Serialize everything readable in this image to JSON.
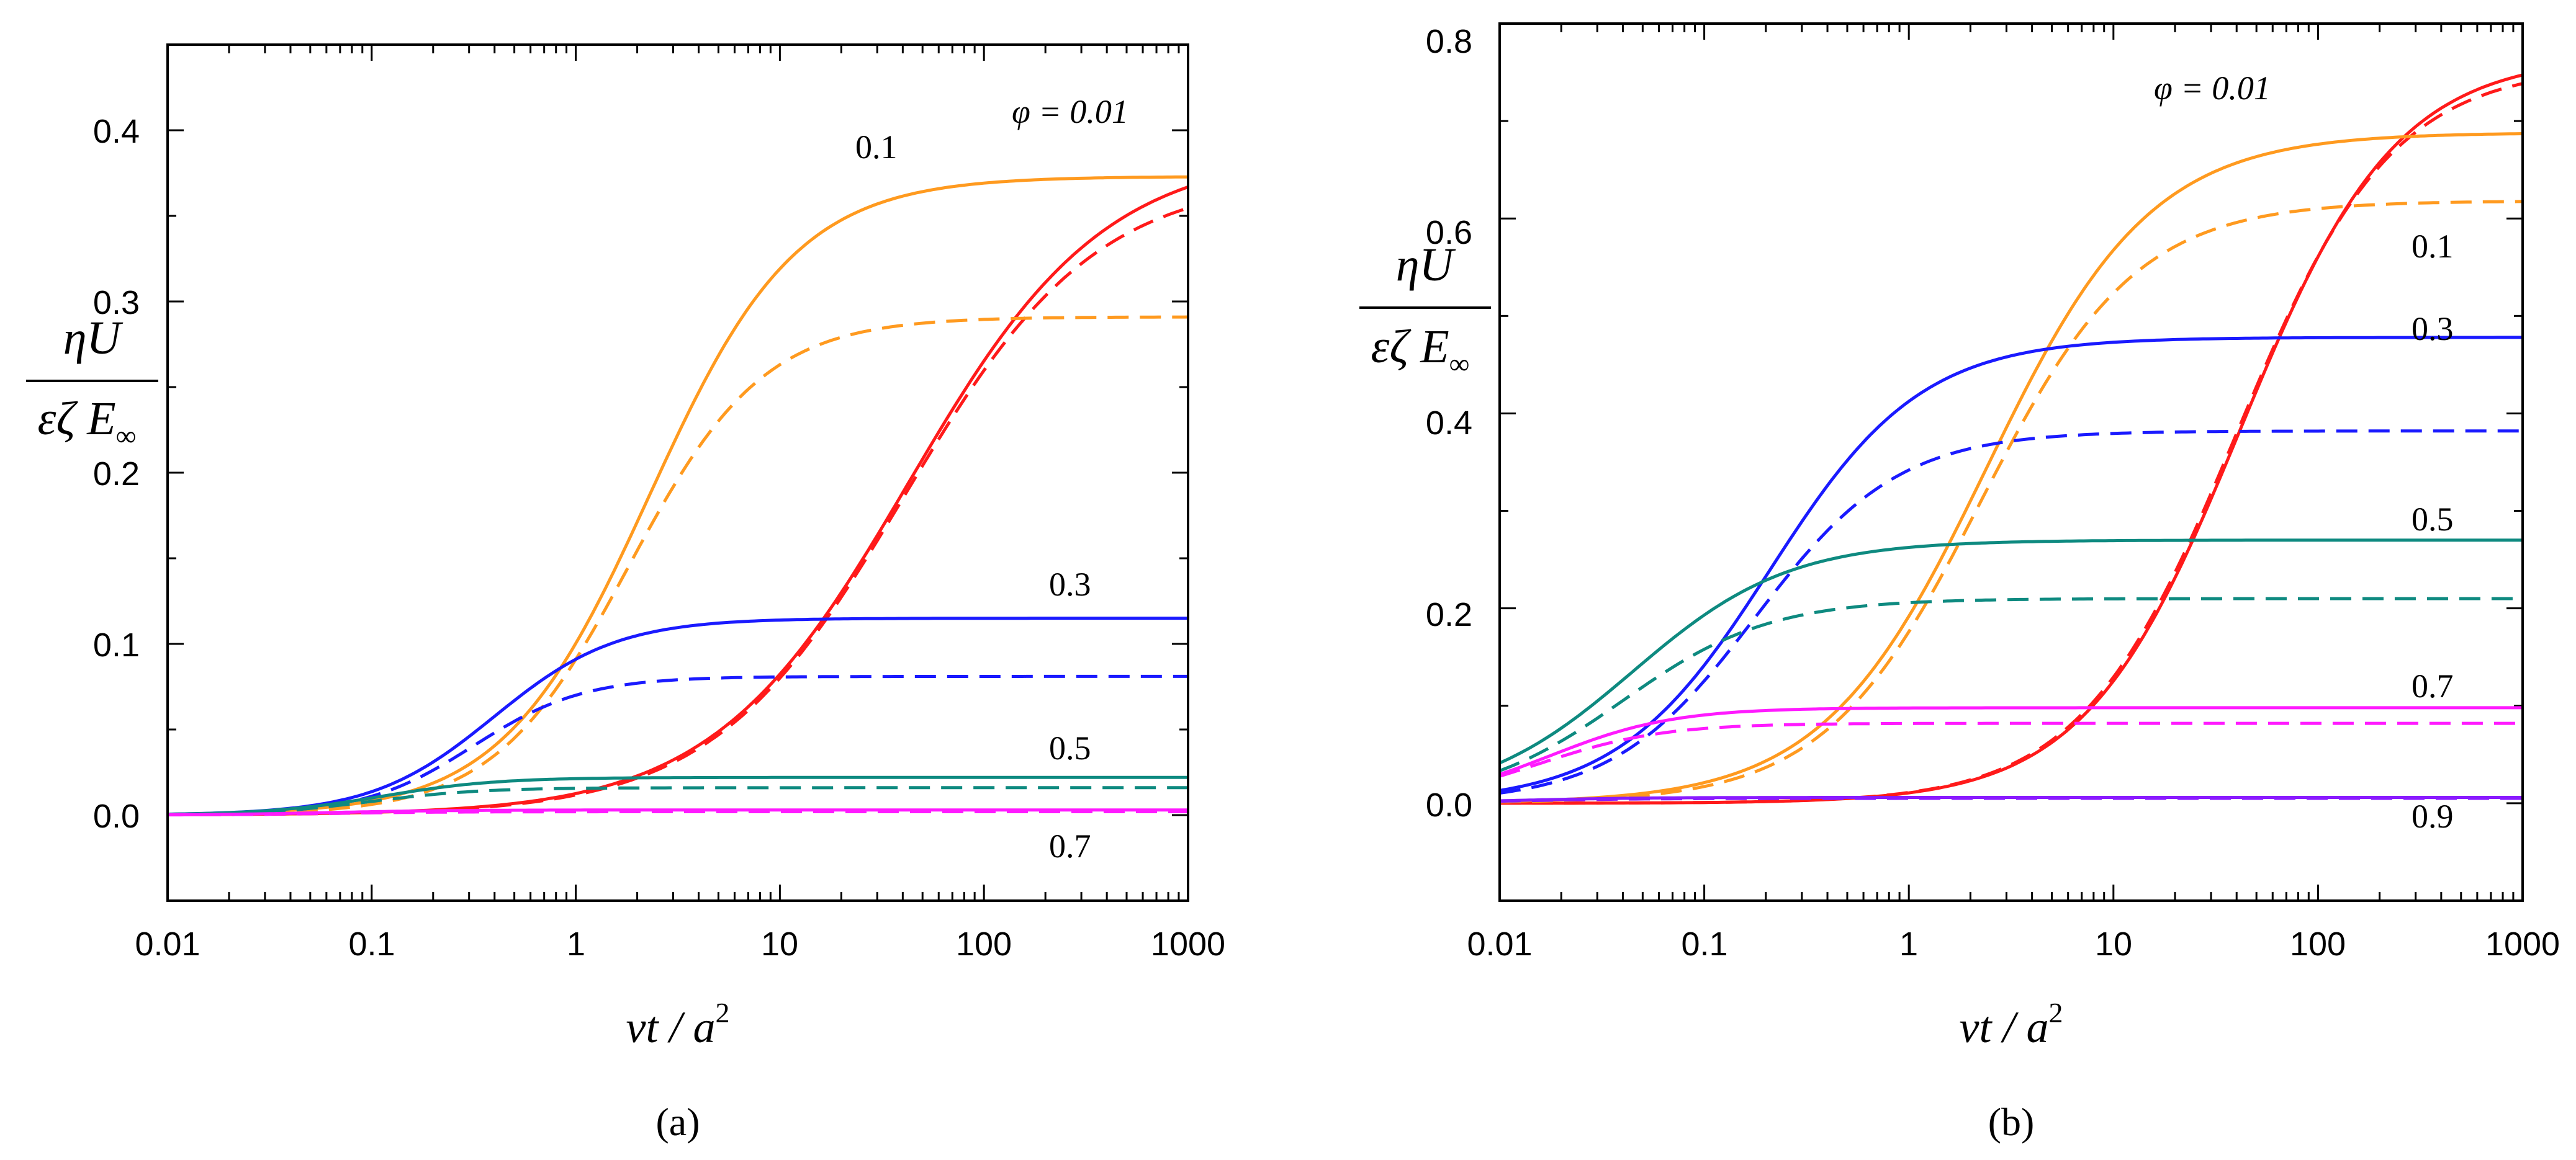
{
  "figure": {
    "panel_labels": [
      "(a)",
      "(b)"
    ]
  },
  "chart_data": [
    {
      "type": "line",
      "panel": "(a)",
      "xscale": "log",
      "xlim": [
        0.01,
        1000
      ],
      "ylim": [
        -0.05,
        0.45
      ],
      "xticks": [
        0.01,
        0.1,
        1,
        10,
        100,
        1000
      ],
      "xtick_labels": [
        "0.01",
        "0.1",
        "1",
        "10",
        "100",
        "1000"
      ],
      "yticks": [
        0.0,
        0.1,
        0.2,
        0.3,
        0.4
      ],
      "ytick_labels": [
        "0.0",
        "0.1",
        "0.2",
        "0.3",
        "0.4"
      ],
      "xlabel": {
        "main": "νt / a",
        "sup": "2"
      },
      "ylabel": {
        "numerator": "ηU",
        "denominator": "εζ E",
        "sub": "∞"
      },
      "series": [
        {
          "name": "φ = 0.01",
          "label": "φ = 0.01",
          "color": "#ff1a1a",
          "solid": {
            "y_start": 0.0,
            "y_end": 0.388,
            "mid_log": 1.63,
            "width": 0.48
          },
          "dashed": {
            "y_start": 0.0,
            "y_end": 0.373,
            "mid_log": 1.61,
            "width": 0.47
          }
        },
        {
          "name": "0.1",
          "label": "0.1",
          "color": "#ff9a1f",
          "solid": {
            "y_start": 0.0,
            "y_end": 0.373,
            "mid_log": 0.36,
            "width": 0.36
          },
          "dashed": {
            "y_start": 0.0,
            "y_end": 0.291,
            "mid_log": 0.26,
            "width": 0.33
          }
        },
        {
          "name": "0.3",
          "label": "0.3",
          "color": "#1a1aff",
          "solid": {
            "y_start": 0.0,
            "y_end": 0.115,
            "mid_log": -0.4,
            "width": 0.3
          },
          "dashed": {
            "y_start": 0.0,
            "y_end": 0.081,
            "mid_log": -0.5,
            "width": 0.27
          }
        },
        {
          "name": "0.5",
          "label": "0.5",
          "color": "#0e8a80",
          "solid": {
            "y_start": 0.0,
            "y_end": 0.022,
            "mid_log": -0.95,
            "width": 0.28
          },
          "dashed": {
            "y_start": 0.0,
            "y_end": 0.016,
            "mid_log": -1.0,
            "width": 0.27
          }
        },
        {
          "name": "0.7",
          "label": "0.7",
          "color": "#ff1aff",
          "solid": {
            "y_start": 0.0,
            "y_end": 0.003,
            "mid_log": -1.2,
            "width": 0.3
          },
          "dashed": {
            "y_start": 0.0,
            "y_end": 0.002,
            "mid_log": -1.2,
            "width": 0.3
          }
        }
      ]
    },
    {
      "type": "line",
      "panel": "(b)",
      "xscale": "log",
      "xlim": [
        0.01,
        1000
      ],
      "ylim": [
        -0.1,
        0.8
      ],
      "xticks": [
        0.01,
        0.1,
        1,
        10,
        100,
        1000
      ],
      "xtick_labels": [
        "0.01",
        "0.1",
        "1",
        "10",
        "100",
        "1000"
      ],
      "yticks": [
        0.0,
        0.2,
        0.4,
        0.6,
        0.8
      ],
      "ytick_labels": [
        "0.0",
        "0.2",
        "0.4",
        "0.6",
        "0.8"
      ],
      "xlabel": {
        "main": "νt / a",
        "sup": "2"
      },
      "ylabel": {
        "numerator": "ηU",
        "denominator": "εζ E",
        "sub": "∞"
      },
      "series": [
        {
          "name": "φ = 0.01",
          "label": "φ = 0.01",
          "color": "#ff1a1a",
          "solid": {
            "y_start": 0.0,
            "y_end": 0.767,
            "mid_log": 1.62,
            "width": 0.38
          },
          "dashed": {
            "y_start": 0.0,
            "y_end": 0.757,
            "mid_log": 1.6,
            "width": 0.38
          }
        },
        {
          "name": "0.1",
          "label": "0.1",
          "color": "#ff9a1f",
          "solid": {
            "y_start": 0.0,
            "y_end": 0.688,
            "mid_log": 0.38,
            "width": 0.4
          },
          "dashed": {
            "y_start": 0.0,
            "y_end": 0.618,
            "mid_log": 0.35,
            "width": 0.38
          }
        },
        {
          "name": "0.3",
          "label": "0.3",
          "color": "#1a1aff",
          "solid": {
            "y_start": 0.0,
            "y_end": 0.478,
            "mid_log": -0.68,
            "width": 0.37
          },
          "dashed": {
            "y_start": 0.0,
            "y_end": 0.382,
            "mid_log": -0.75,
            "width": 0.35
          }
        },
        {
          "name": "0.5",
          "label": "0.5",
          "color": "#0e8a80",
          "solid": {
            "y_start": 0.0,
            "y_end": 0.27,
            "mid_log": -1.35,
            "width": 0.38
          },
          "dashed": {
            "y_start": 0.0,
            "y_end": 0.21,
            "mid_log": -1.4,
            "width": 0.36
          }
        },
        {
          "name": "0.7",
          "label": "0.7",
          "color": "#ff1aff",
          "solid": {
            "y_start": 0.0,
            "y_end": 0.098,
            "mid_log": -1.75,
            "width": 0.3
          },
          "dashed": {
            "y_start": 0.0,
            "y_end": 0.082,
            "mid_log": -1.8,
            "width": 0.3
          }
        },
        {
          "name": "0.9",
          "label": "0.9",
          "color": "#8a1aff",
          "solid": {
            "y_start": 0.0,
            "y_end": 0.006,
            "mid_log": -1.9,
            "width": 0.3
          },
          "dashed": {
            "y_start": 0.0,
            "y_end": 0.005,
            "mid_log": -1.9,
            "width": 0.3
          }
        }
      ]
    }
  ]
}
